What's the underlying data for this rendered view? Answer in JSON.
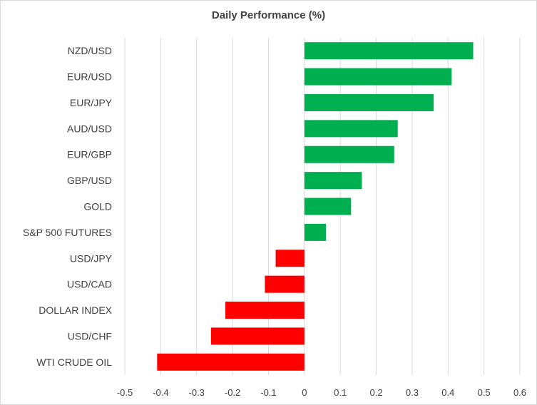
{
  "chart_data": {
    "type": "bar",
    "orientation": "horizontal",
    "title": "Daily Performance (%)",
    "categories": [
      "NZD/USD",
      "EUR/USD",
      "EUR/JPY",
      "AUD/USD",
      "EUR/GBP",
      "GBP/USD",
      "GOLD",
      "S&P 500 FUTURES",
      "USD/JPY",
      "USD/CAD",
      "DOLLAR INDEX",
      "USD/CHF",
      "WTI CRUDE OIL"
    ],
    "values": [
      0.47,
      0.41,
      0.36,
      0.26,
      0.25,
      0.16,
      0.13,
      0.06,
      -0.08,
      -0.11,
      -0.22,
      -0.26,
      -0.41
    ],
    "xlim": [
      -0.5,
      0.6
    ],
    "xticks": [
      "-0.5",
      "-0.4",
      "-0.3",
      "-0.2",
      "-0.1",
      "0",
      "0.1",
      "0.2",
      "0.3",
      "0.4",
      "0.5",
      "0.6"
    ],
    "grid": true,
    "colors": {
      "positive": "#00b050",
      "negative": "#ff0000"
    }
  }
}
